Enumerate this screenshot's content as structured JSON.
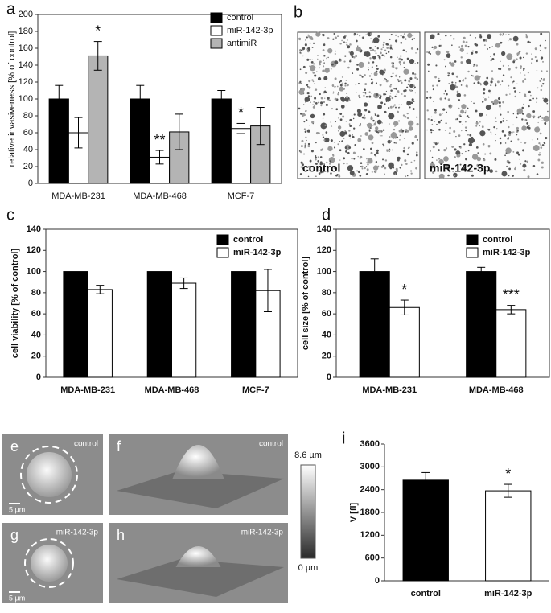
{
  "chart_data": [
    {
      "type": "bar",
      "panel": "a",
      "ylabel": "relative invasiveness [% of control]",
      "categories": [
        "MDA-MB-231",
        "MDA-MB-468",
        "MCF-7"
      ],
      "series": [
        {
          "name": "control",
          "color": "#000000",
          "values": [
            100,
            100,
            100
          ],
          "errors": [
            16,
            16,
            10
          ],
          "significance": [
            null,
            null,
            null
          ]
        },
        {
          "name": "miR-142-3p",
          "color": "#ffffff",
          "values": [
            60,
            31,
            65
          ],
          "errors": [
            18,
            8,
            6
          ],
          "significance": [
            null,
            "**",
            "*"
          ]
        },
        {
          "name": "antimiR",
          "color": "#b4b4b4",
          "values": [
            151,
            61,
            68
          ],
          "errors": [
            17,
            21,
            22
          ],
          "significance": [
            "*",
            null,
            null
          ]
        }
      ],
      "ylim": [
        0,
        200
      ],
      "yticks": [
        0,
        20,
        40,
        60,
        80,
        100,
        120,
        140,
        160,
        180,
        200
      ],
      "grid": false,
      "legend": "upper right"
    },
    {
      "type": "image",
      "panels": [
        "b"
      ],
      "labels": [
        "control",
        "miR-142-3p"
      ]
    },
    {
      "type": "bar",
      "panel": "c",
      "ylabel": "cell viability [% of control]",
      "categories": [
        "MDA-MB-231",
        "MDA-MB-468",
        "MCF-7"
      ],
      "series": [
        {
          "name": "control",
          "color": "#000000",
          "values": [
            100,
            100,
            100
          ],
          "errors": [
            null,
            null,
            null
          ],
          "significance": [
            null,
            null,
            null
          ]
        },
        {
          "name": "miR-142-3p",
          "color": "#ffffff",
          "values": [
            83,
            89,
            82
          ],
          "errors": [
            4,
            5,
            20
          ],
          "significance": [
            null,
            null,
            null
          ]
        }
      ],
      "ylim": [
        0,
        140
      ],
      "yticks": [
        0,
        20,
        40,
        60,
        80,
        100,
        120,
        140
      ],
      "grid": false,
      "legend": "upper right"
    },
    {
      "type": "bar",
      "panel": "d",
      "ylabel": "cell size [% of control]",
      "categories": [
        "MDA-MB-231",
        "MDA-MB-468"
      ],
      "series": [
        {
          "name": "control",
          "color": "#000000",
          "values": [
            100,
            100
          ],
          "errors": [
            12,
            4
          ],
          "significance": [
            null,
            null
          ]
        },
        {
          "name": "miR-142-3p",
          "color": "#ffffff",
          "values": [
            66,
            64
          ],
          "errors": [
            7,
            4
          ],
          "significance": [
            "*",
            "***"
          ]
        }
      ],
      "ylim": [
        0,
        140
      ],
      "yticks": [
        0,
        20,
        40,
        60,
        80,
        100,
        120,
        140
      ],
      "grid": false,
      "legend": "upper right"
    },
    {
      "type": "image",
      "panels": [
        "e",
        "f",
        "g",
        "h"
      ],
      "labels": [
        "control",
        "control",
        "miR-142-3p",
        "miR-142-3p"
      ],
      "scale_bar": "5 µm",
      "colorbar_max": "8.6 µm",
      "colorbar_min": "0 µm"
    },
    {
      "type": "bar",
      "panel": "i",
      "ylabel": "V [fl]",
      "categories": [
        "control",
        "miR-142-3p"
      ],
      "values": [
        2650,
        2370
      ],
      "errors": [
        200,
        170
      ],
      "colors": [
        "#000000",
        "#ffffff"
      ],
      "significance": [
        null,
        "*"
      ],
      "ylim": [
        0,
        3600
      ],
      "yticks": [
        0,
        600,
        1200,
        1800,
        2400,
        3000,
        3600
      ],
      "grid": false
    }
  ]
}
